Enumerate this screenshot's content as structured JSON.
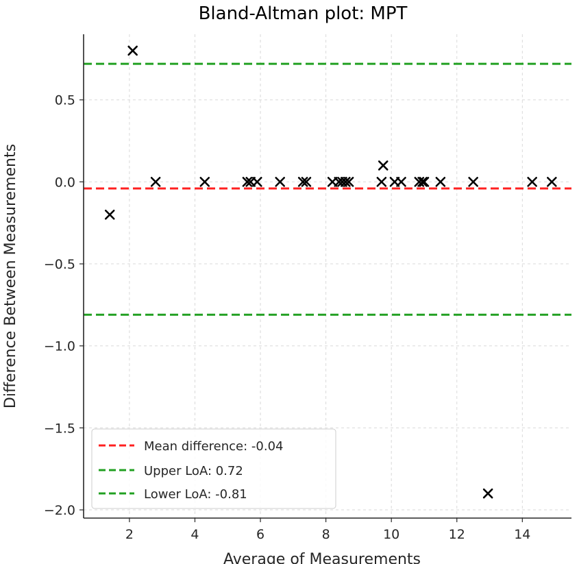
{
  "chart_data": {
    "type": "scatter",
    "title": "Bland-Altman plot: MPT",
    "xlabel": "Average of Measurements",
    "ylabel": "Difference Between Measurements",
    "xlim": [
      0.6,
      15.5
    ],
    "ylim": [
      -2.05,
      0.9
    ],
    "xticks": [
      2,
      4,
      6,
      8,
      10,
      12,
      14
    ],
    "xtick_labels": [
      "2",
      "4",
      "6",
      "8",
      "10",
      "12",
      "14"
    ],
    "yticks": [
      0.5,
      0.0,
      -0.5,
      -1.0,
      -1.5,
      -2.0
    ],
    "ytick_labels": [
      "0.5",
      "0.0",
      "−0.5",
      "−1.0",
      "−1.5",
      "−2.0"
    ],
    "grid": true,
    "legend_position": "lower-left",
    "points": {
      "marker": "x",
      "color": "#000000",
      "x": [
        1.4,
        2.1,
        2.8,
        4.3,
        5.6,
        5.7,
        5.9,
        6.6,
        7.3,
        7.4,
        8.2,
        8.4,
        8.5,
        8.6,
        8.7,
        9.7,
        9.75,
        10.1,
        10.3,
        10.85,
        10.95,
        11.0,
        11.5,
        12.5,
        12.95,
        14.3,
        14.9
      ],
      "y": [
        -0.2,
        0.8,
        0.0,
        0.0,
        0.0,
        0.0,
        0.0,
        0.0,
        0.0,
        0.0,
        0.0,
        0.0,
        0.0,
        0.0,
        0.0,
        0.0,
        0.1,
        0.0,
        0.0,
        0.0,
        0.0,
        0.0,
        0.0,
        0.0,
        -1.9,
        0.0,
        0.0
      ]
    },
    "reference_lines": [
      {
        "label": "Mean difference: -0.04",
        "y": -0.04,
        "color": "#ff2020",
        "style": "dashed"
      },
      {
        "label": "Upper LoA: 0.72",
        "y": 0.72,
        "color": "#22a022",
        "style": "dashed"
      },
      {
        "label": "Lower LoA: -0.81",
        "y": -0.81,
        "color": "#22a022",
        "style": "dashed"
      }
    ],
    "colors": {
      "mean": "#ff2020",
      "loa": "#22a022",
      "grid": "#d9d9d9",
      "axis": "#262626"
    }
  }
}
